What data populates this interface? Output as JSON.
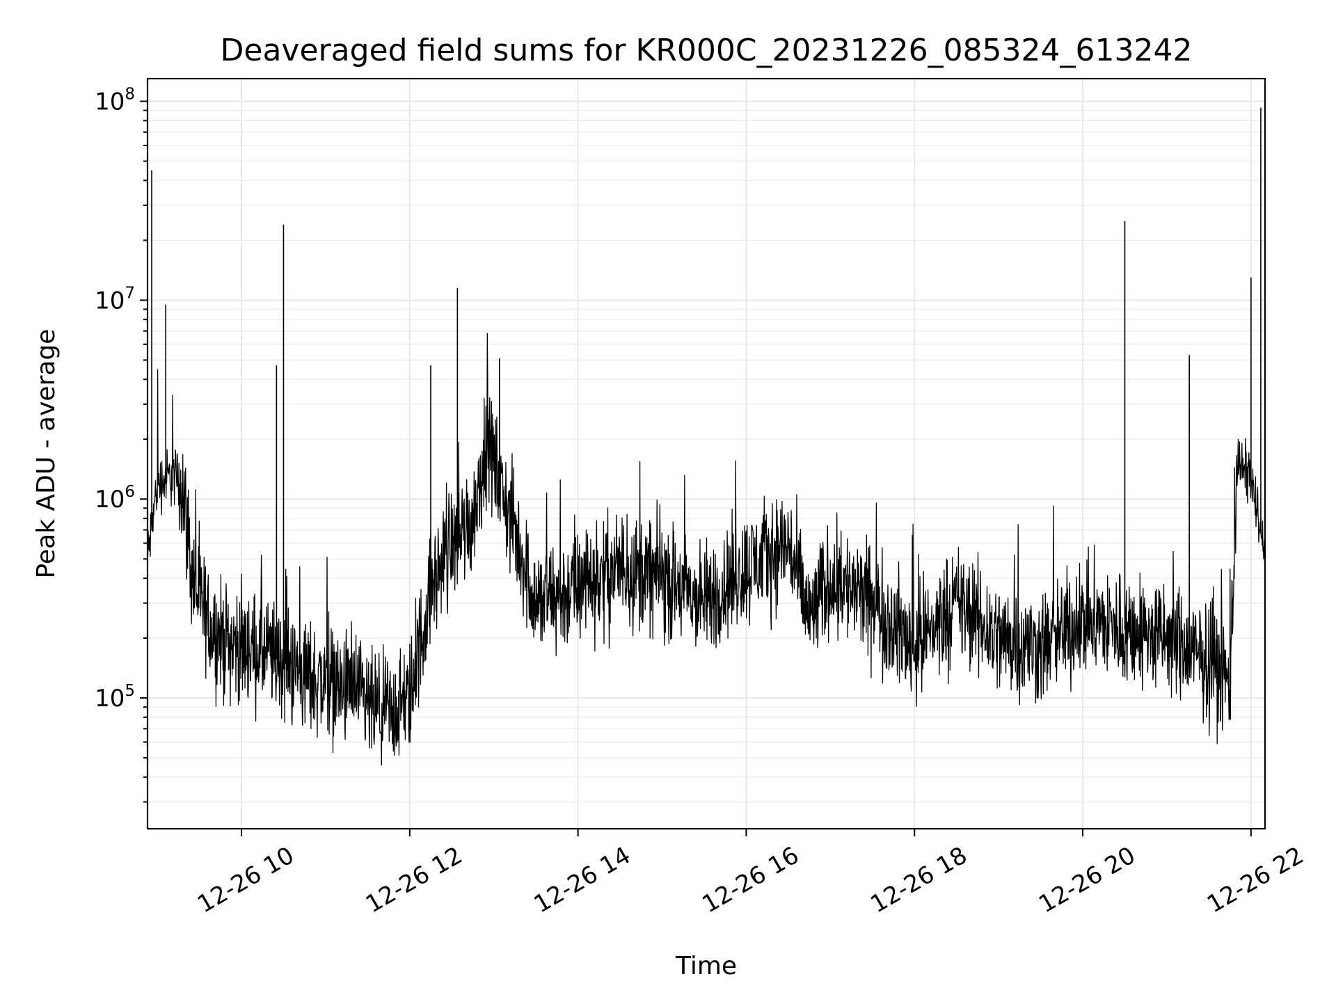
{
  "chart_data": {
    "type": "line",
    "title": "Deaveraged field sums for KR000C_20231226_085324_613242",
    "xlabel": "Time",
    "ylabel": "Peak ADU - average",
    "x_axis": {
      "kind": "datetime",
      "range": [
        "2023-12-26 08:53",
        "2023-12-26 22:10"
      ],
      "ticks": [
        {
          "value": "2023-12-26 10:00",
          "label": "12-26 10"
        },
        {
          "value": "2023-12-26 12:00",
          "label": "12-26 12"
        },
        {
          "value": "2023-12-26 14:00",
          "label": "12-26 14"
        },
        {
          "value": "2023-12-26 16:00",
          "label": "12-26 16"
        },
        {
          "value": "2023-12-26 18:00",
          "label": "12-26 18"
        },
        {
          "value": "2023-12-26 20:00",
          "label": "12-26 20"
        },
        {
          "value": "2023-12-26 22:00",
          "label": "12-26 22"
        }
      ]
    },
    "y_axis": {
      "scale": "log",
      "range": [
        22000,
        130000000
      ],
      "ticks": [
        {
          "value": 100000,
          "base": "10",
          "exp": "5"
        },
        {
          "value": 1000000,
          "base": "10",
          "exp": "6"
        },
        {
          "value": 10000000,
          "base": "10",
          "exp": "7"
        },
        {
          "value": 100000000,
          "base": "10",
          "exp": "8"
        }
      ]
    },
    "grid": true,
    "series_color": "#000000",
    "series": [
      {
        "x": [
          "2023-12-26 08:53",
          "2023-12-26 09:00",
          "2023-12-26 09:10",
          "2023-12-26 09:18",
          "2023-12-26 09:25",
          "2023-12-26 09:35",
          "2023-12-26 09:45",
          "2023-12-26 10:00",
          "2023-12-26 10:15",
          "2023-12-26 10:30",
          "2023-12-26 10:45",
          "2023-12-26 11:00",
          "2023-12-26 11:15",
          "2023-12-26 11:30",
          "2023-12-26 11:45",
          "2023-12-26 12:00",
          "2023-12-26 12:15",
          "2023-12-26 12:30",
          "2023-12-26 12:45",
          "2023-12-26 12:55",
          "2023-12-26 13:10",
          "2023-12-26 13:30",
          "2023-12-26 14:00",
          "2023-12-26 14:30",
          "2023-12-26 15:00",
          "2023-12-26 15:30",
          "2023-12-26 16:00",
          "2023-12-26 16:30",
          "2023-12-26 16:45",
          "2023-12-26 17:00",
          "2023-12-26 17:30",
          "2023-12-26 18:00",
          "2023-12-26 18:30",
          "2023-12-26 19:00",
          "2023-12-26 19:30",
          "2023-12-26 20:00",
          "2023-12-26 20:30",
          "2023-12-26 21:00",
          "2023-12-26 21:30",
          "2023-12-26 21:45",
          "2023-12-26 21:50",
          "2023-12-26 22:00",
          "2023-12-26 22:10"
        ],
        "y": [
          500000,
          1200000,
          1300000,
          1200000,
          400000,
          250000,
          200000,
          180000,
          170000,
          150000,
          130000,
          120000,
          110000,
          90000,
          80000,
          100000,
          350000,
          600000,
          800000,
          2000000,
          900000,
          300000,
          350000,
          450000,
          400000,
          300000,
          450000,
          600000,
          250000,
          400000,
          300000,
          180000,
          300000,
          200000,
          180000,
          250000,
          220000,
          200000,
          150000,
          120000,
          1500000,
          1300000,
          500000
        ],
        "spikes": [
          {
            "x": "2023-12-26 08:56",
            "y": 45000000
          },
          {
            "x": "2023-12-26 09:06",
            "y": 9500000
          },
          {
            "x": "2023-12-26 10:30",
            "y": 24000000
          },
          {
            "x": "2023-12-26 10:25",
            "y": 4700000
          },
          {
            "x": "2023-12-26 12:34",
            "y": 11500000
          },
          {
            "x": "2023-12-26 12:15",
            "y": 4700000
          },
          {
            "x": "2023-12-26 13:04",
            "y": 5100000
          },
          {
            "x": "2023-12-26 20:30",
            "y": 25000000
          },
          {
            "x": "2023-12-26 21:16",
            "y": 5300000
          },
          {
            "x": "2023-12-26 22:00",
            "y": 13000000
          },
          {
            "x": "2023-12-26 22:07",
            "y": 93000000
          }
        ]
      }
    ]
  }
}
